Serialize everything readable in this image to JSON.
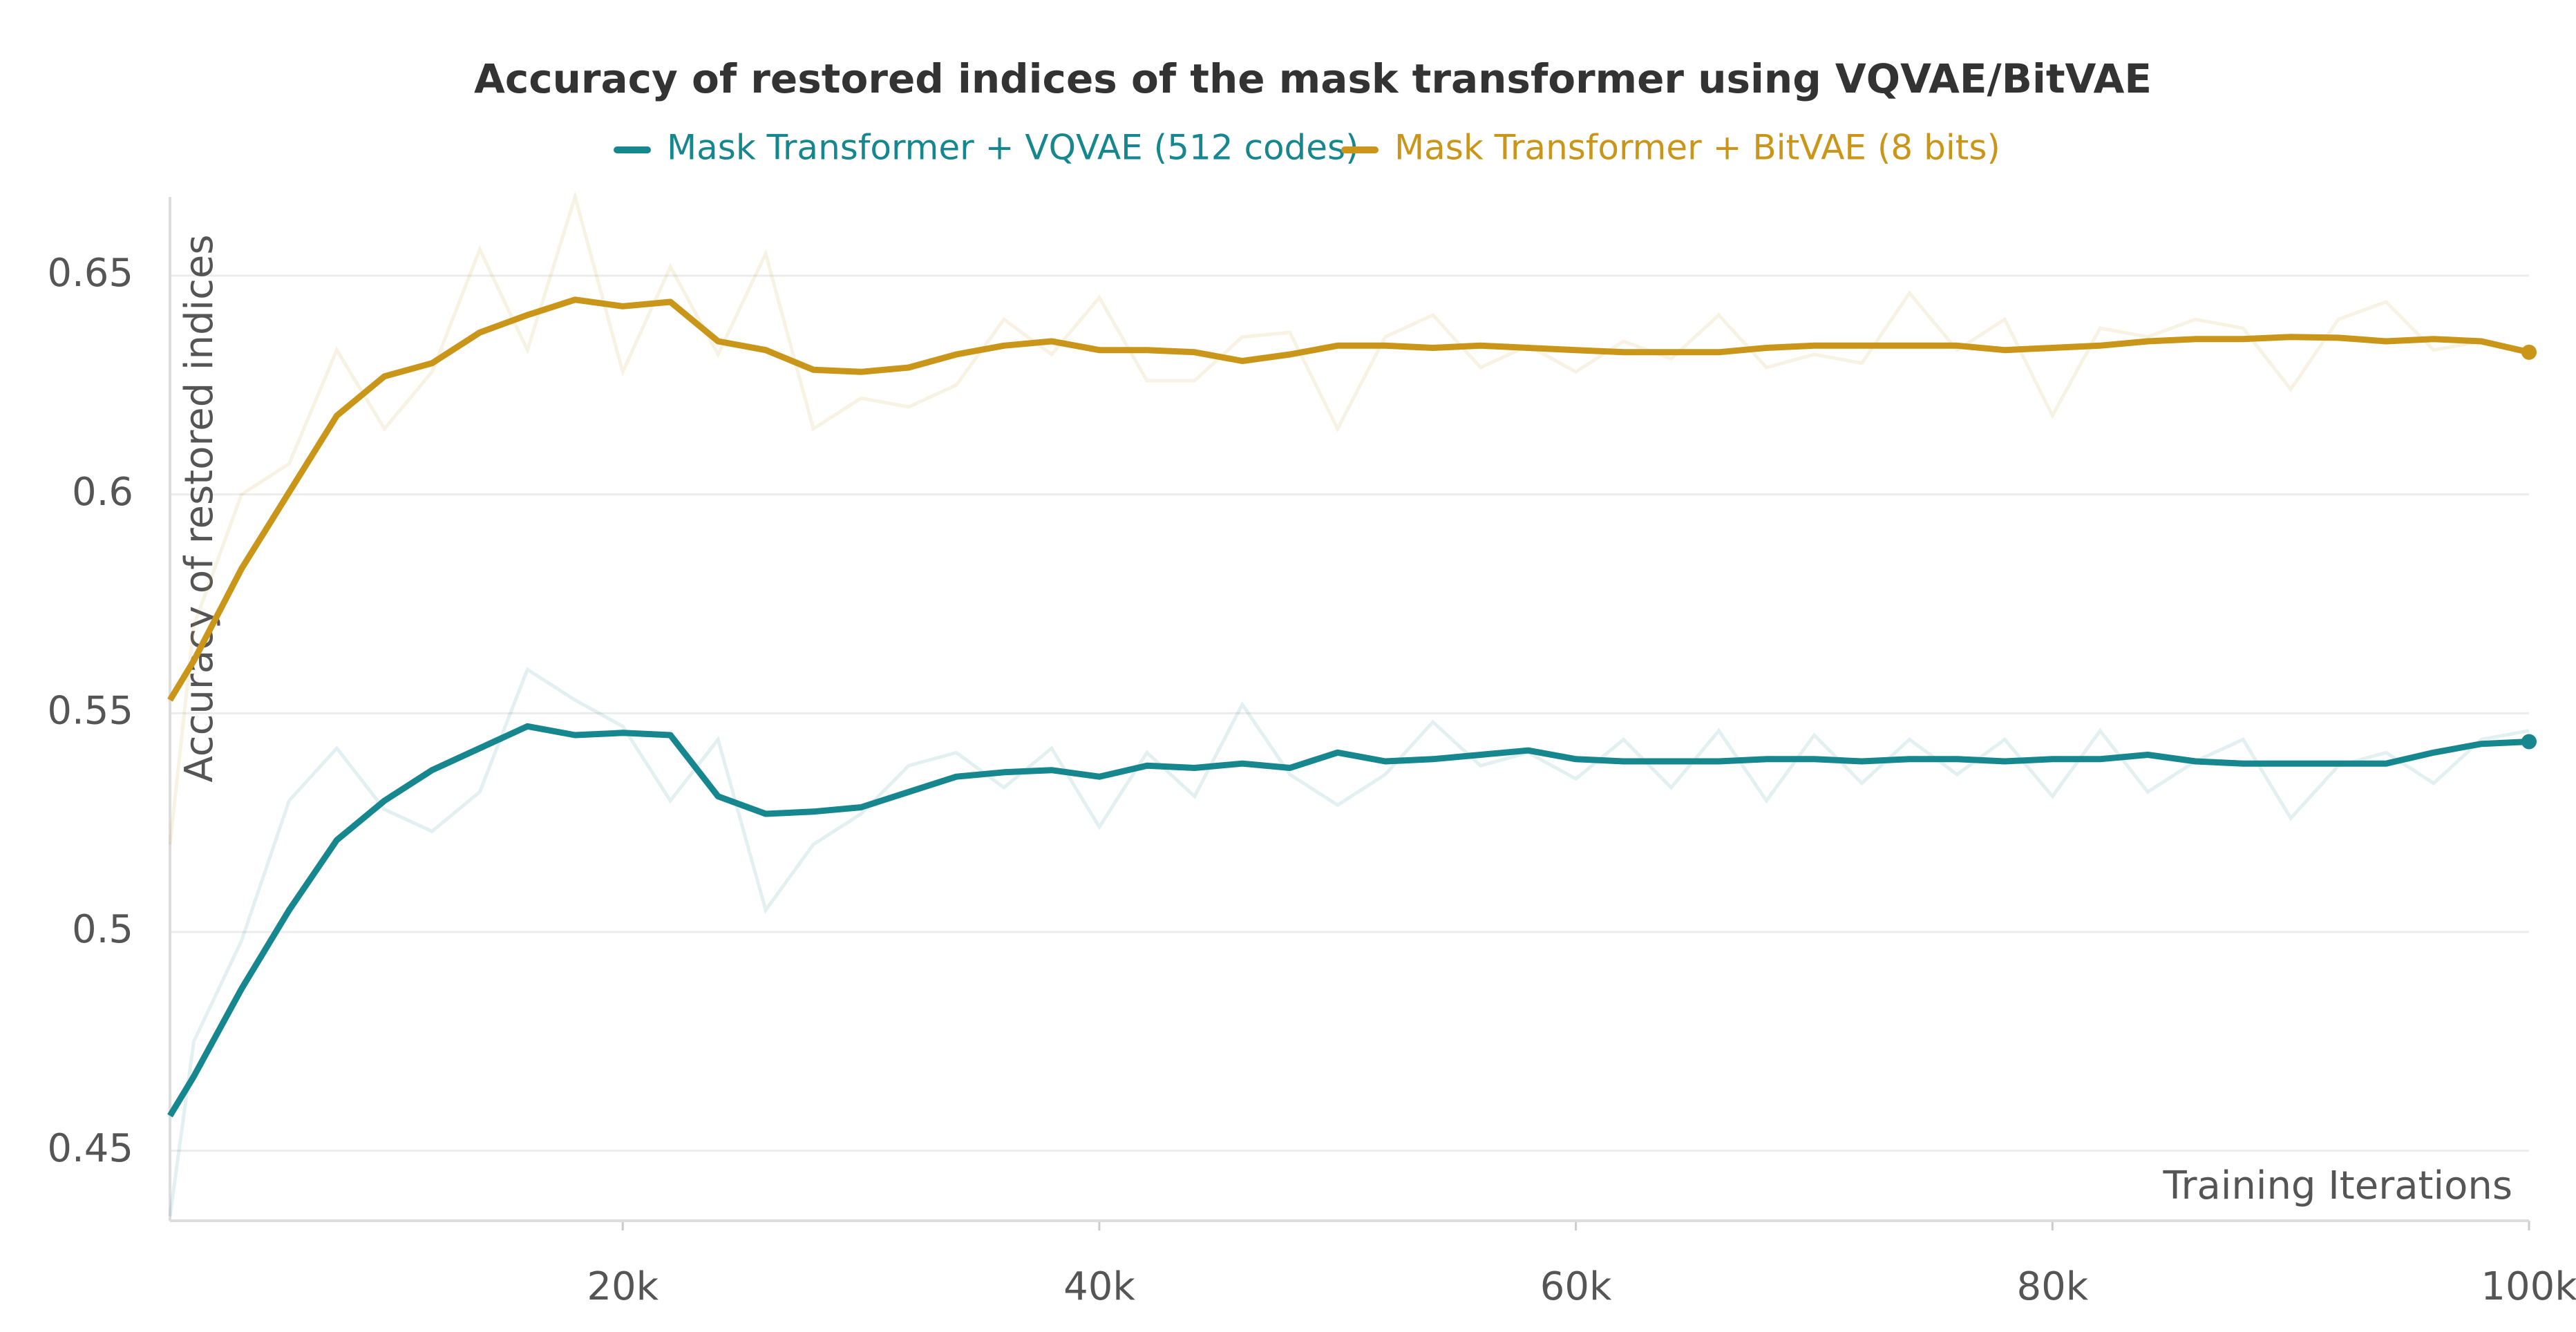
{
  "chart_data": {
    "type": "line",
    "title": "Accuracy of restored indices of the mask transformer using VQVAE/BitVAE",
    "x_label": "Training Iterations",
    "y_label": "Accuracy of restored indices",
    "x": [
      1000,
      2000,
      4000,
      6000,
      8000,
      10000,
      12000,
      14000,
      16000,
      18000,
      20000,
      22000,
      24000,
      26000,
      28000,
      30000,
      32000,
      34000,
      36000,
      38000,
      40000,
      42000,
      44000,
      46000,
      48000,
      50000,
      52000,
      54000,
      56000,
      58000,
      60000,
      62000,
      64000,
      66000,
      68000,
      70000,
      72000,
      74000,
      76000,
      78000,
      80000,
      82000,
      84000,
      86000,
      88000,
      90000,
      92000,
      94000,
      96000,
      98000,
      100000
    ],
    "series": [
      {
        "name": "Mask Transformer + VQVAE (512 codes)",
        "color": "#16868f",
        "values": [
          0.458,
          0.467,
          0.487,
          0.505,
          0.521,
          0.53,
          0.537,
          0.542,
          0.547,
          0.545,
          0.5455,
          0.545,
          0.531,
          0.527,
          0.5275,
          0.5285,
          0.532,
          0.5355,
          0.5365,
          0.537,
          0.5355,
          0.538,
          0.5375,
          0.5385,
          0.5375,
          0.541,
          0.539,
          0.5395,
          0.5405,
          0.5415,
          0.5395,
          0.539,
          0.539,
          0.539,
          0.5395,
          0.5395,
          0.539,
          0.5395,
          0.5395,
          0.539,
          0.5395,
          0.5395,
          0.5405,
          0.539,
          0.5385,
          0.5385,
          0.5385,
          0.5385,
          0.541,
          0.543,
          0.5435
        ],
        "raw_values": [
          0.435,
          0.475,
          0.498,
          0.53,
          0.542,
          0.528,
          0.523,
          0.532,
          0.56,
          0.553,
          0.547,
          0.53,
          0.544,
          0.505,
          0.52,
          0.527,
          0.538,
          0.541,
          0.533,
          0.542,
          0.524,
          0.541,
          0.531,
          0.552,
          0.536,
          0.529,
          0.536,
          0.548,
          0.538,
          0.541,
          0.535,
          0.544,
          0.533,
          0.546,
          0.53,
          0.545,
          0.534,
          0.544,
          0.536,
          0.544,
          0.531,
          0.546,
          0.532,
          0.539,
          0.544,
          0.526,
          0.538,
          0.541,
          0.534,
          0.544,
          0.546
        ]
      },
      {
        "name": "Mask Transformer + BitVAE (8 bits)",
        "color": "#c9961a",
        "values": [
          0.553,
          0.562,
          0.583,
          0.6005,
          0.618,
          0.627,
          0.63,
          0.637,
          0.641,
          0.6445,
          0.643,
          0.644,
          0.635,
          0.633,
          0.6285,
          0.628,
          0.629,
          0.632,
          0.634,
          0.635,
          0.633,
          0.633,
          0.6325,
          0.6305,
          0.632,
          0.634,
          0.634,
          0.6335,
          0.634,
          0.6335,
          0.633,
          0.6325,
          0.6325,
          0.6325,
          0.6335,
          0.634,
          0.634,
          0.634,
          0.634,
          0.633,
          0.6335,
          0.634,
          0.635,
          0.6355,
          0.6355,
          0.636,
          0.6358,
          0.635,
          0.6355,
          0.635,
          0.6325
        ],
        "raw_values": [
          0.52,
          0.57,
          0.6,
          0.607,
          0.633,
          0.615,
          0.628,
          0.656,
          0.633,
          0.668,
          0.628,
          0.652,
          0.632,
          0.655,
          0.615,
          0.622,
          0.62,
          0.625,
          0.64,
          0.632,
          0.645,
          0.626,
          0.626,
          0.636,
          0.637,
          0.615,
          0.636,
          0.641,
          0.629,
          0.634,
          0.628,
          0.635,
          0.631,
          0.641,
          0.629,
          0.632,
          0.63,
          0.646,
          0.633,
          0.64,
          0.618,
          0.638,
          0.636,
          0.64,
          0.638,
          0.624,
          0.64,
          0.644,
          0.633,
          0.635,
          0.632
        ]
      }
    ],
    "xlim": [
      1000,
      100000
    ],
    "xticks": [
      {
        "value": 20000,
        "label": "20k"
      },
      {
        "value": 40000,
        "label": "40k"
      },
      {
        "value": 60000,
        "label": "60k"
      },
      {
        "value": 80000,
        "label": "80k"
      },
      {
        "value": 100000,
        "label": "100k"
      }
    ],
    "ylim": [
      0.434,
      0.668
    ],
    "yticks": [
      0.45,
      0.5,
      0.55,
      0.6,
      0.65
    ],
    "grid": true
  }
}
